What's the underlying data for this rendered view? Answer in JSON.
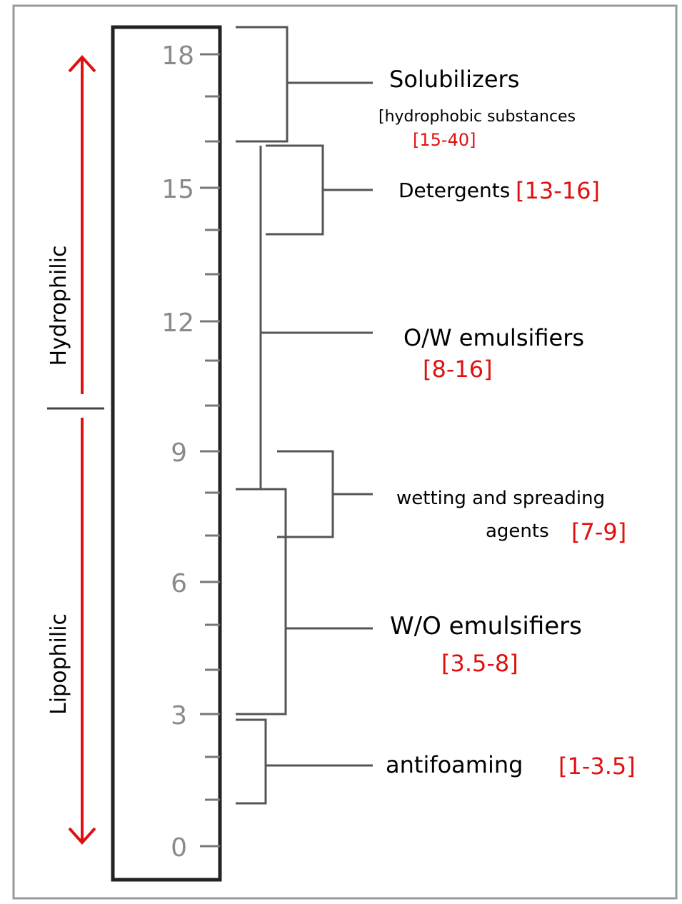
{
  "scale": {
    "ticks": [
      "18",
      "15",
      "12",
      "9",
      "6",
      "3",
      "0"
    ],
    "minor_ticks_between": 2
  },
  "side_labels": {
    "top": "Hydrophilic",
    "bottom": "Lipophilic"
  },
  "categories": [
    {
      "key": "solubilizers",
      "label": "Solubilizers",
      "sublabel": "[hydrophobic substances",
      "range": "[15-40]"
    },
    {
      "key": "detergents",
      "label": "Detergents",
      "range": "[13-16]"
    },
    {
      "key": "ow",
      "label": "O/W emulsifiers",
      "range": "[8-16]"
    },
    {
      "key": "wetting",
      "label": "wetting and spreading",
      "label2": "agents",
      "range": "[7-9]"
    },
    {
      "key": "wo",
      "label": "W/O emulsifiers",
      "range": "[3.5-8]"
    },
    {
      "key": "antifoam",
      "label": "antifoaming",
      "range": "[1-3.5]"
    }
  ],
  "colors": {
    "arrow": "#e01010",
    "range_text": "#e01010",
    "lines": "#555555",
    "frame": "#222222"
  }
}
